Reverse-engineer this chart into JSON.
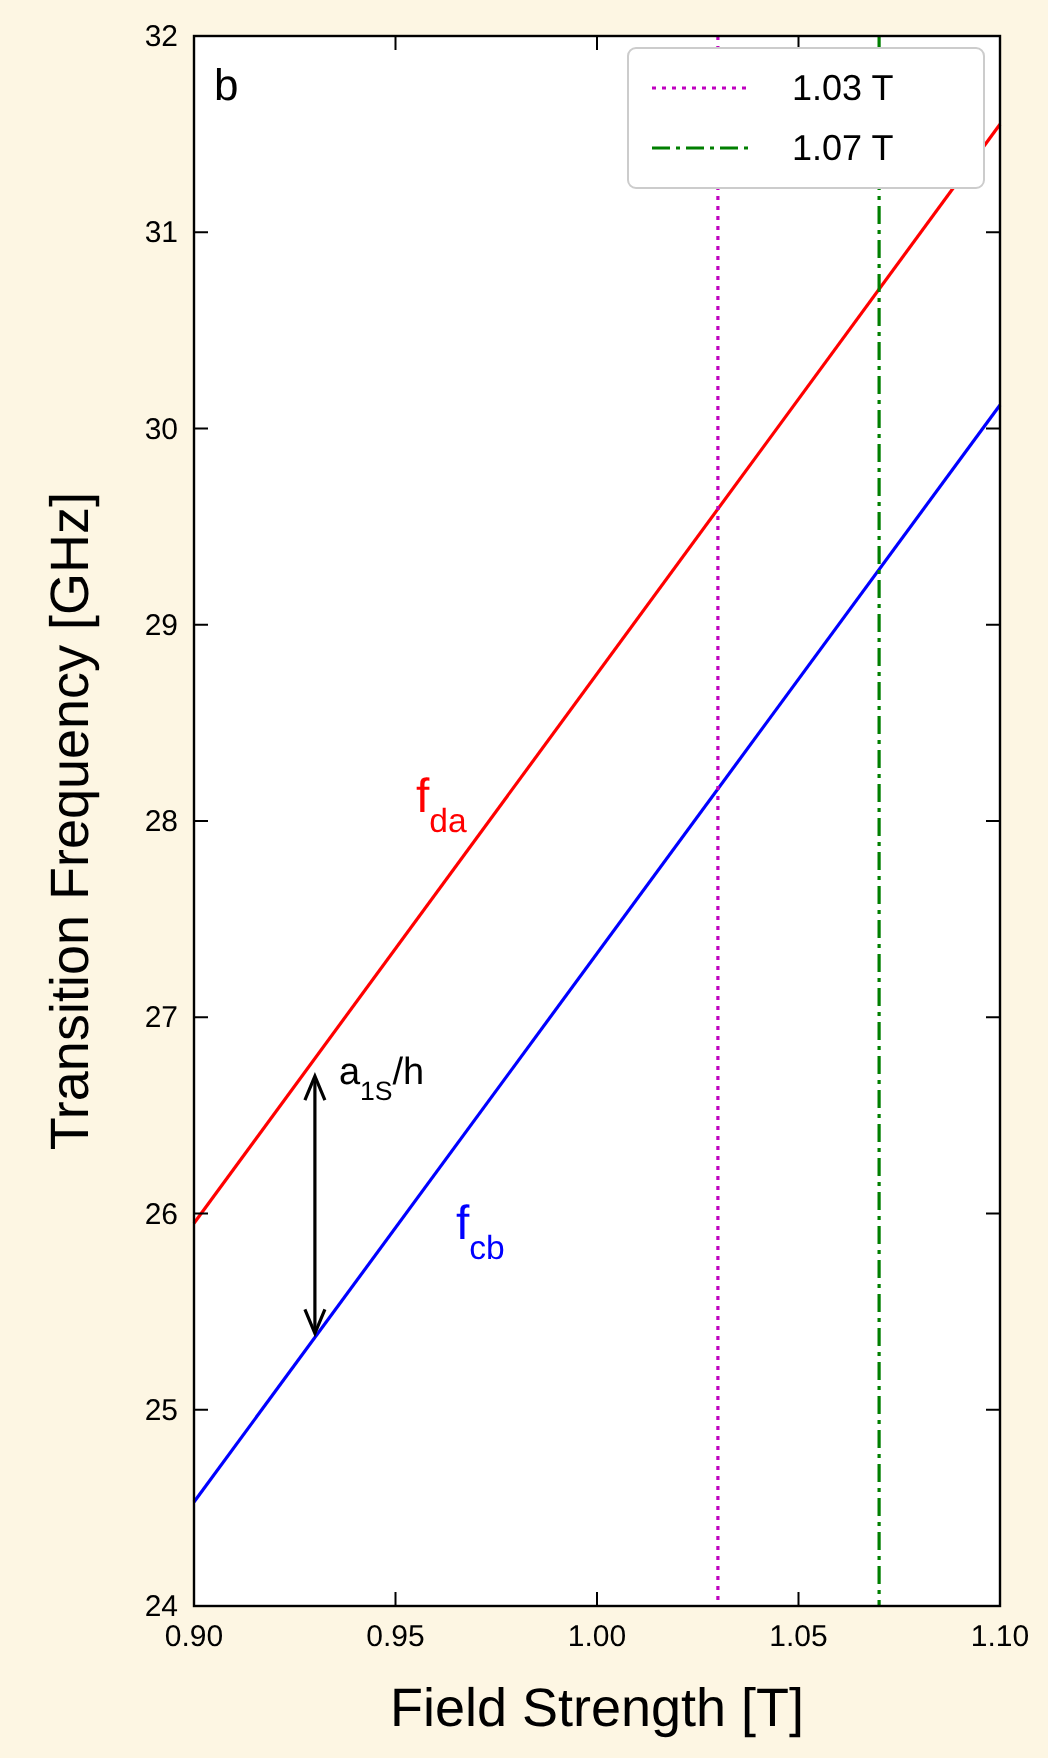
{
  "chart_data": {
    "type": "line",
    "xlabel": "Field Strength [T]",
    "ylabel": "Transition Frequency [GHz]",
    "xlim": [
      0.9,
      1.1
    ],
    "ylim": [
      24,
      32
    ],
    "xticks": [
      {
        "value": 0.9,
        "label": "0.90"
      },
      {
        "value": 0.95,
        "label": "0.95"
      },
      {
        "value": 1.0,
        "label": "1.00"
      },
      {
        "value": 1.05,
        "label": "1.05"
      },
      {
        "value": 1.1,
        "label": "1.10"
      }
    ],
    "yticks": [
      24,
      25,
      26,
      27,
      28,
      29,
      30,
      31,
      32
    ],
    "x": [
      0.9,
      1.1
    ],
    "series": [
      {
        "name": "f$_{da}$",
        "color": "#ff0000",
        "values": [
          25.95,
          31.55
        ],
        "line_style": "solid"
      },
      {
        "name": "f$_{cb}$",
        "color": "#0000ff",
        "values": [
          24.53,
          30.12
        ],
        "line_style": "solid"
      }
    ],
    "ref_lines": [
      {
        "axis": "x",
        "value": 1.03,
        "label": "1.03 T",
        "color": "#c000c0",
        "line_style": "dotted"
      },
      {
        "axis": "x",
        "value": 1.07,
        "label": "1.07 T",
        "color": "#007f00",
        "line_style": "dashdot"
      }
    ],
    "legend": "top right",
    "grid": false,
    "annotations": [
      "b",
      {
        "text": "a$_{1S}$/h",
        "x": 0.93,
        "y": 26.72
      }
    ]
  }
}
